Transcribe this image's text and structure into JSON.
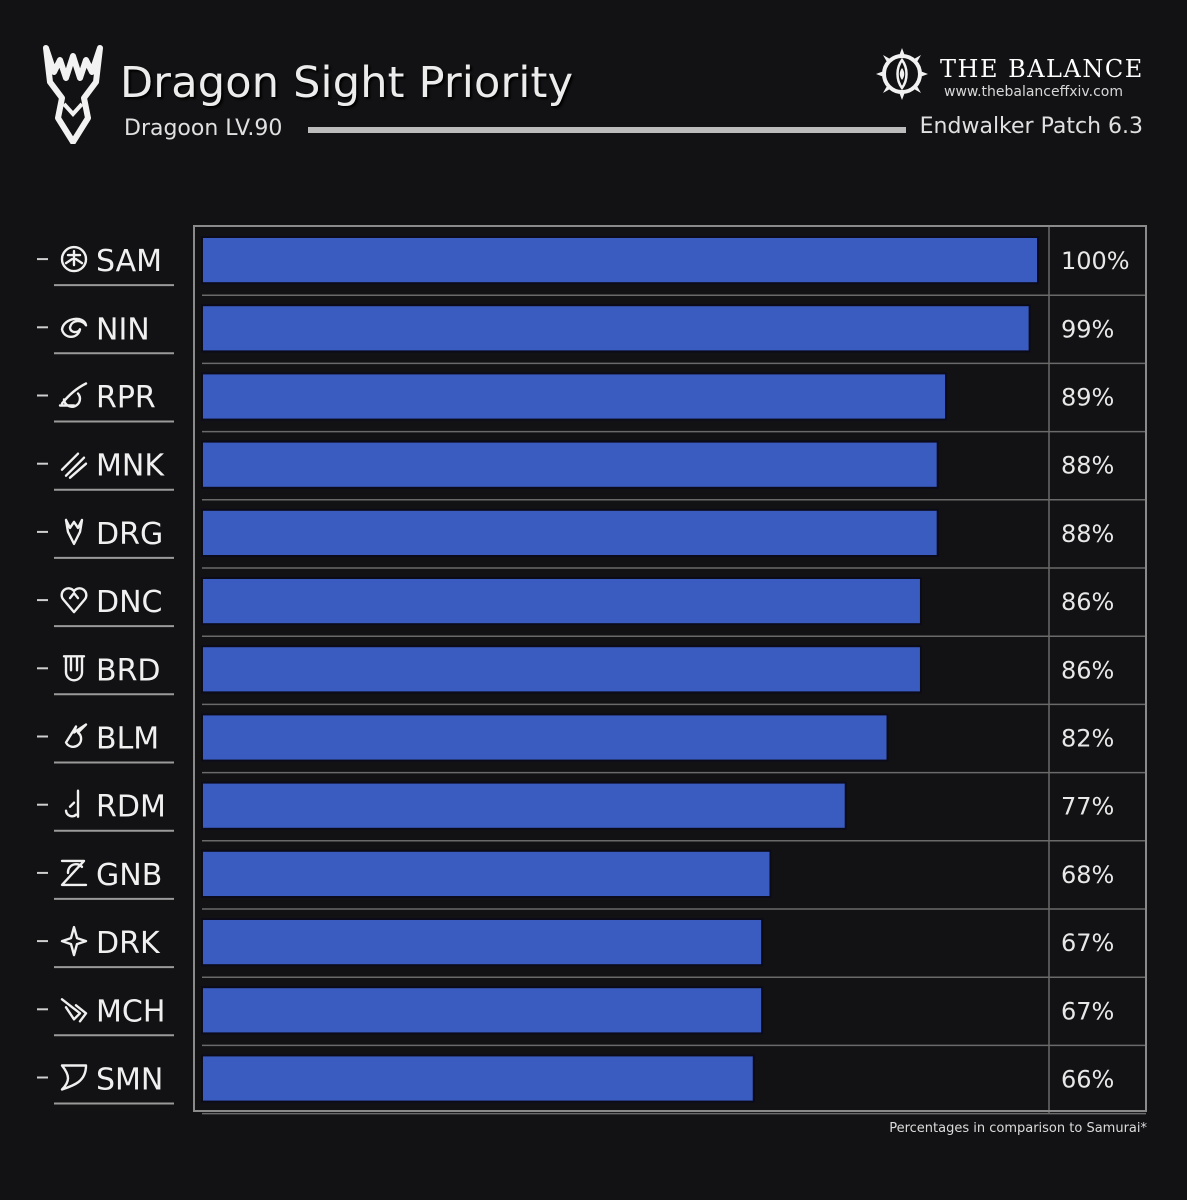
{
  "header": {
    "title": "Dragon Sight Priority",
    "subtitle": "Dragoon LV.90",
    "patch": "Endwalker Patch 6.3",
    "brand_name": "THE BALANCE",
    "brand_url": "www.thebalanceffxiv.com"
  },
  "footnote": "Percentages in comparison to Samurai*",
  "colors": {
    "background": "#121214",
    "bar": "#3a5bbf",
    "bar_border": "#0b0b1a",
    "text": "#e8e8e8",
    "grid": "#6a6a6a"
  },
  "chart_data": {
    "type": "bar",
    "orientation": "horizontal",
    "categories": [
      "SAM",
      "NIN",
      "RPR",
      "MNK",
      "DRG",
      "DNC",
      "BRD",
      "BLM",
      "RDM",
      "GNB",
      "DRK",
      "MCH",
      "SMN"
    ],
    "icons": [
      "sam-icon",
      "nin-icon",
      "rpr-icon",
      "mnk-icon",
      "drg-icon",
      "dnc-icon",
      "brd-icon",
      "blm-icon",
      "rdm-icon",
      "gnb-icon",
      "drk-icon",
      "mch-icon",
      "smn-icon"
    ],
    "values": [
      100,
      99,
      89,
      88,
      88,
      86,
      86,
      82,
      77,
      68,
      67,
      67,
      66
    ],
    "labels": [
      "100%",
      "99%",
      "89%",
      "88%",
      "88%",
      "86%",
      "86%",
      "82%",
      "77%",
      "68%",
      "67%",
      "67%",
      "66%"
    ],
    "xlim": [
      0,
      100
    ],
    "unit": "%"
  }
}
